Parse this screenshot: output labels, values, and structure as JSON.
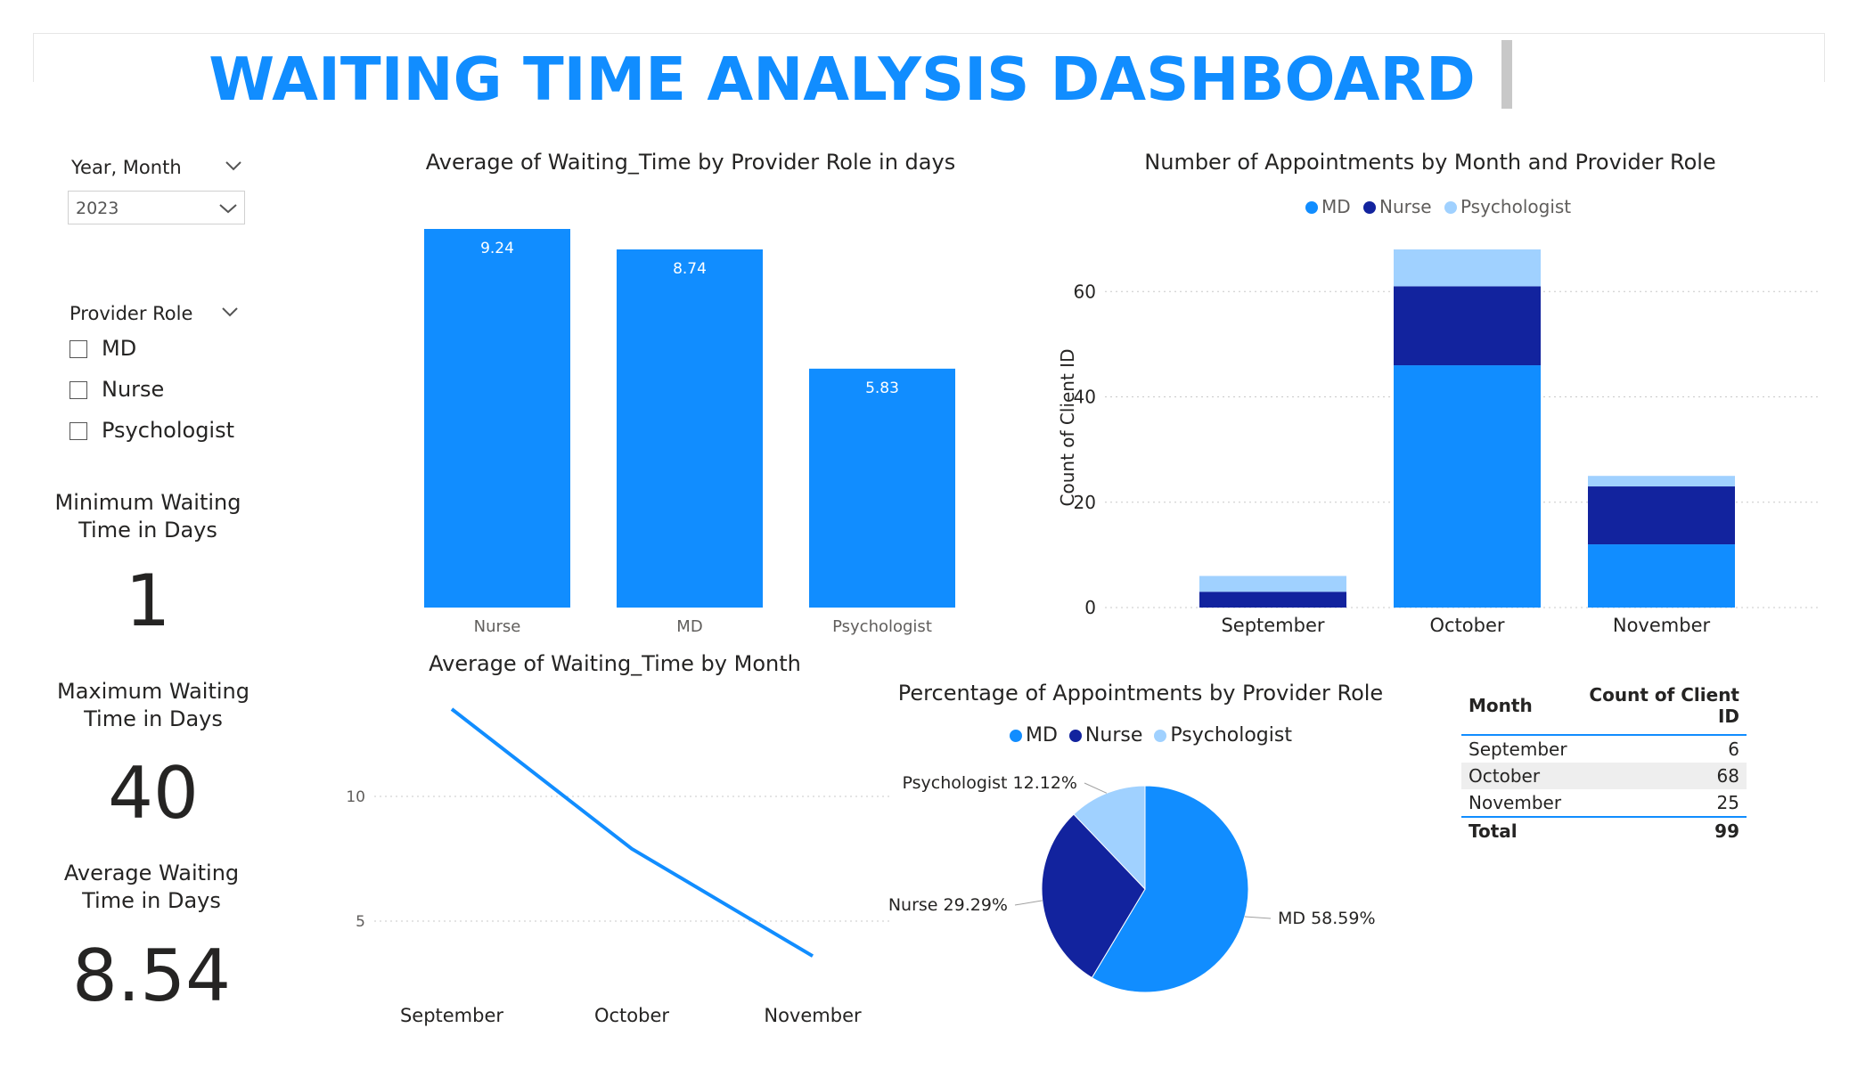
{
  "title": "WAITING TIME ANALYSIS DASHBOARD",
  "colors": {
    "md": "#118dff",
    "nurse": "#12239e",
    "psychologist": "#a0d1ff",
    "accent": "#118dff"
  },
  "slicer_year": {
    "title": "Year, Month",
    "value": "2023"
  },
  "slicer_role": {
    "title": "Provider Role",
    "options": [
      "MD",
      "Nurse",
      "Psychologist"
    ]
  },
  "cards": {
    "min": {
      "label_line1": "Minimum Waiting",
      "label_line2": "Time in Days",
      "value": "1"
    },
    "max": {
      "label_line1": "Maximum Waiting",
      "label_line2": "Time in Days",
      "value": "40"
    },
    "avg": {
      "label_line1": "Average Waiting",
      "label_line2": "Time in Days",
      "value": "8.54"
    }
  },
  "chart_data": [
    {
      "type": "bar",
      "title": "Average of Waiting_Time by Provider Role in days",
      "categories": [
        "Nurse",
        "MD",
        "Psychologist"
      ],
      "values": [
        9.24,
        8.74,
        5.83
      ],
      "labels": [
        "9.24",
        "8.74",
        "5.83"
      ],
      "ylim": [
        0,
        9.24
      ],
      "grid": false
    },
    {
      "type": "bar",
      "stacked": true,
      "title": "Number of Appointments by Month and Provider Role",
      "ylabel": "Count of Client ID",
      "categories": [
        "September",
        "October",
        "November"
      ],
      "series": [
        {
          "name": "MD",
          "values": [
            0,
            46,
            12
          ]
        },
        {
          "name": "Nurse",
          "values": [
            3,
            15,
            11
          ]
        },
        {
          "name": "Psychologist",
          "values": [
            3,
            7,
            2
          ]
        }
      ],
      "yticks": [
        "0",
        "20",
        "40",
        "60"
      ],
      "ylim": [
        0,
        68
      ],
      "legend": "top-center",
      "grid": true
    },
    {
      "type": "line",
      "title": "Average of Waiting_Time by Month",
      "categories": [
        "September",
        "October",
        "November"
      ],
      "values": [
        13.5,
        7.9,
        3.6
      ],
      "yticks": [
        "5",
        "10"
      ],
      "ylim": [
        2,
        15
      ],
      "grid": true
    },
    {
      "type": "pie",
      "title": "Percentage of Appointments by Provider Role",
      "categories": [
        "MD",
        "Nurse",
        "Psychologist"
      ],
      "values": [
        58.59,
        29.29,
        12.12
      ],
      "labels": [
        "MD 58.59%",
        "Nurse 29.29%",
        "Psychologist 12.12%"
      ],
      "legend": "top-center"
    },
    {
      "type": "table",
      "columns": [
        "Month",
        "Count of Client ID"
      ],
      "rows": [
        [
          "September",
          "6"
        ],
        [
          "October",
          "68"
        ],
        [
          "November",
          "25"
        ]
      ],
      "total": [
        "Total",
        "99"
      ]
    }
  ]
}
